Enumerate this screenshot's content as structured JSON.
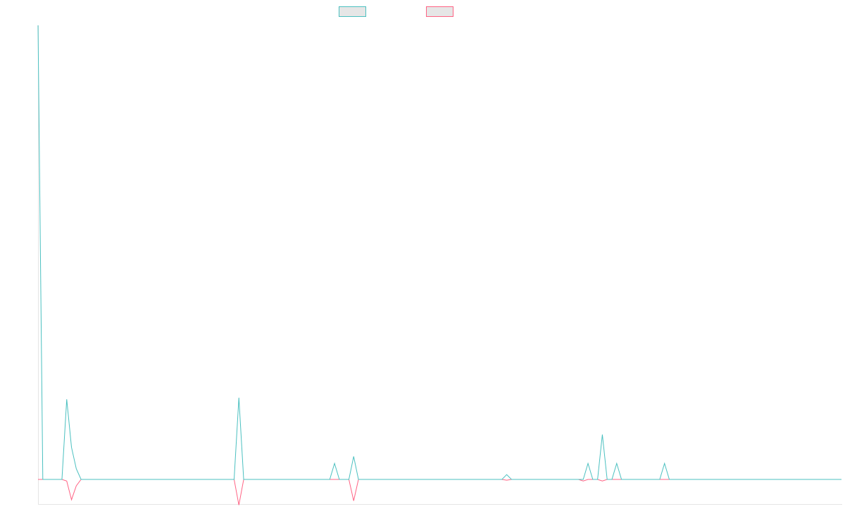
{
  "chart_data": {
    "type": "line",
    "title": "",
    "xlabel": "",
    "ylabel": "",
    "legend_position": "top-center",
    "grid": false,
    "ylim": [
      -5,
      90
    ],
    "series": [
      {
        "name": "",
        "color": "#4bc0c0",
        "values": [
          85,
          0,
          0,
          0,
          0,
          0,
          15,
          6,
          2,
          0,
          0,
          0,
          0,
          0,
          0,
          0,
          0,
          0,
          0,
          0,
          0,
          0,
          0,
          0,
          0,
          0,
          0,
          0,
          0,
          0,
          0,
          0,
          0,
          0,
          0,
          0,
          0,
          0,
          0,
          0,
          0,
          0,
          15.3,
          0,
          0,
          0,
          0,
          0,
          0,
          0,
          0,
          0,
          0,
          0,
          0,
          0,
          0,
          0,
          0,
          0,
          0,
          0,
          3,
          0,
          0,
          0,
          4.3,
          0,
          0,
          0,
          0,
          0,
          0,
          0,
          0,
          0,
          0,
          0,
          0,
          0,
          0,
          0,
          0,
          0,
          0,
          0,
          0,
          0,
          0,
          0,
          0,
          0,
          0,
          0,
          0,
          0,
          0,
          0,
          0.9,
          0,
          0,
          0,
          0,
          0,
          0,
          0,
          0,
          0,
          0,
          0,
          0,
          0,
          0,
          0,
          0,
          3,
          0,
          0,
          8.4,
          0,
          0,
          3,
          0,
          0,
          0,
          0,
          0,
          0,
          0,
          0,
          0,
          3,
          0,
          0,
          0,
          0,
          0,
          0,
          0,
          0,
          0,
          0,
          0,
          0,
          0,
          0,
          0,
          0,
          0,
          0,
          0,
          0,
          0,
          0,
          0,
          0,
          0,
          0,
          0,
          0,
          0,
          0,
          0,
          0,
          0,
          0,
          0,
          0,
          0
        ]
      },
      {
        "name": "",
        "color": "#ff6384",
        "values": [
          0,
          0,
          0,
          0,
          0,
          0,
          -0.3,
          -3.8,
          -1.2,
          0,
          0,
          0,
          0,
          0,
          0,
          0,
          0,
          0,
          0,
          0,
          0,
          0,
          0,
          0,
          0,
          0,
          0,
          0,
          0,
          0,
          0,
          0,
          0,
          0,
          0,
          0,
          0,
          0,
          0,
          0,
          0,
          0,
          -4.8,
          0,
          0,
          0,
          0,
          0,
          0,
          0,
          0,
          0,
          0,
          0,
          0,
          0,
          0,
          0,
          0,
          0,
          0,
          0,
          0,
          0,
          0,
          0,
          -4,
          0,
          0,
          0,
          0,
          0,
          0,
          0,
          0,
          0,
          0,
          0,
          0,
          0,
          0,
          0,
          0,
          0,
          0,
          0,
          0,
          0,
          0,
          0,
          0,
          0,
          0,
          0,
          0,
          0,
          0,
          0,
          -0.15,
          0,
          0,
          0,
          0,
          0,
          0,
          0,
          0,
          0,
          0,
          0,
          0,
          0,
          0,
          0,
          -0.3,
          0,
          0,
          0,
          -0.3,
          0,
          0,
          0,
          0,
          0,
          0,
          0,
          0,
          0,
          0,
          0,
          0,
          0,
          0,
          0,
          0,
          0,
          0,
          0,
          0,
          0,
          0,
          0,
          0,
          0,
          0,
          0,
          0,
          0,
          0,
          0,
          0,
          0,
          0,
          0,
          0,
          0,
          0,
          0,
          0,
          0,
          0,
          0,
          0,
          0,
          0,
          0,
          0,
          0,
          0
        ]
      }
    ]
  }
}
